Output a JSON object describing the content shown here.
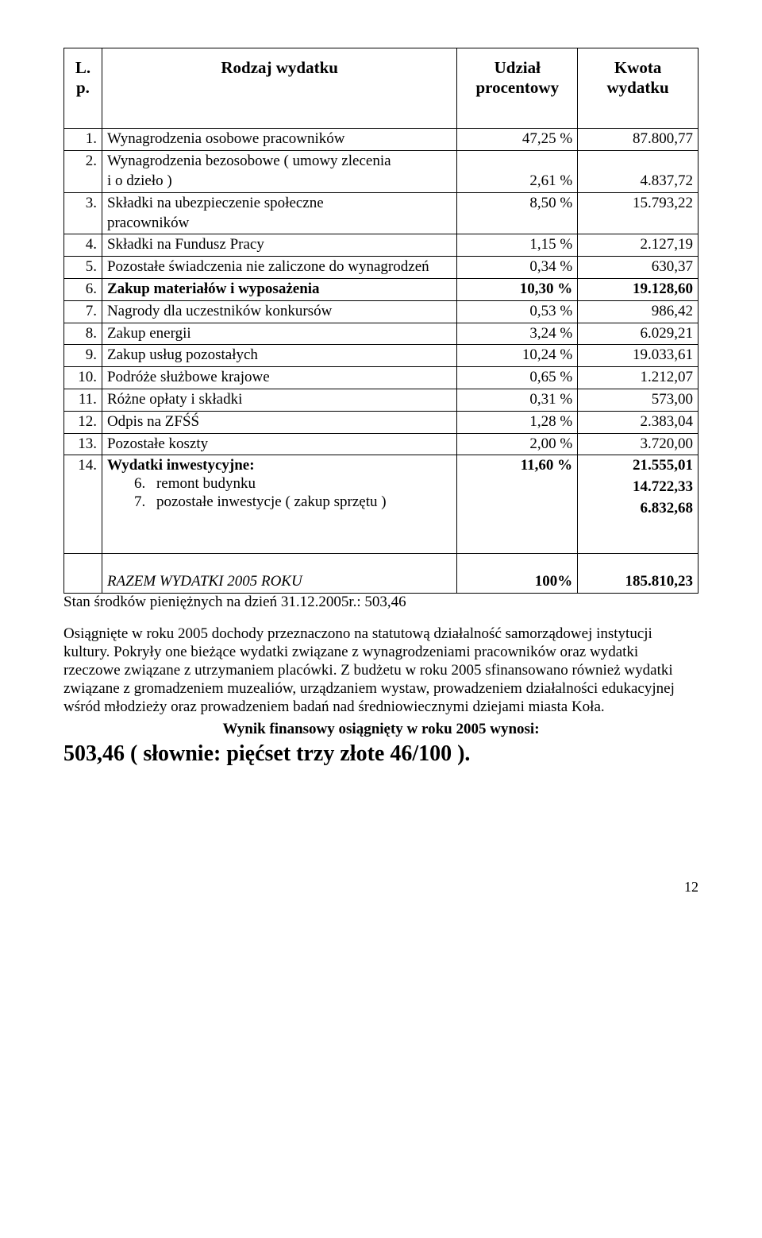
{
  "header": {
    "lp": "L. p.",
    "rodzaj": "Rodzaj wydatku",
    "udzial": "Udział procentowy",
    "kwota": "Kwota wydatku"
  },
  "rows": [
    {
      "lp": "1.",
      "desc": "Wynagrodzenia osobowe pracowników",
      "pct": "47,25 %",
      "amt": "87.800,77",
      "bold": false
    },
    {
      "lp": "2.",
      "desc_lines": [
        "Wynagrodzenia bezosobowe ( umowy zlecenia",
        "i o dzieło )"
      ],
      "pct": "2,61 %",
      "amt": "4.837,72",
      "bold": false,
      "pct_bottom": true
    },
    {
      "lp": "3.",
      "desc_lines": [
        "Składki na ubezpieczenie społeczne",
        "pracowników"
      ],
      "pct": "8,50 %",
      "amt": "15.793,22",
      "bold": false,
      "pct_bottom": false
    },
    {
      "lp": "4.",
      "desc": "Składki na Fundusz Pracy",
      "pct": "1,15 %",
      "amt": "2.127,19",
      "bold": false
    },
    {
      "lp": "5.",
      "desc": "Pozostałe świadczenia nie zaliczone do wynagrodzeń",
      "pct": "0,34 %",
      "amt": "630,37",
      "bold": false
    },
    {
      "lp": "6.",
      "desc": "Zakup materiałów i wyposażenia",
      "pct": "10,30 %",
      "amt": "19.128,60",
      "bold": true
    },
    {
      "lp": "7.",
      "desc": "Nagrody dla uczestników konkursów",
      "pct": "0,53 %",
      "amt": "986,42",
      "bold": false
    },
    {
      "lp": "8.",
      "desc": "Zakup energii",
      "pct": "3,24 %",
      "amt": "6.029,21",
      "bold": false
    },
    {
      "lp": "9.",
      "desc": "Zakup usług pozostałych",
      "pct": "10,24 %",
      "amt": "19.033,61",
      "bold": false
    },
    {
      "lp": "10.",
      "desc": "Podróże służbowe krajowe",
      "pct": "0,65 %",
      "amt": "1.212,07",
      "bold": false
    },
    {
      "lp": "11.",
      "desc": "Różne opłaty i składki",
      "pct": "0,31 %",
      "amt": "573,00",
      "bold": false
    },
    {
      "lp": "12.",
      "desc": "Odpis na ZFŚŚ",
      "pct": "1,28 %",
      "amt": "2.383,04",
      "bold": false
    },
    {
      "lp": "13.",
      "desc": "Pozostałe koszty",
      "pct": "2,00 %",
      "amt": "3.720,00",
      "bold": false
    }
  ],
  "row14": {
    "lp": "14.",
    "desc": "Wydatki inwestycyjne:",
    "pct": "11,60 %",
    "amt": "21.555,01",
    "sub": [
      {
        "n": "6.",
        "text": "remont budynku",
        "val": "14.722,33"
      },
      {
        "n": "7.",
        "text": "pozostałe inwestycje ( zakup sprzętu )",
        "val": "6.832,68"
      }
    ]
  },
  "summary": {
    "label": "RAZEM WYDATKI 2005 ROKU",
    "pct": "100%",
    "amt": "185.810,23"
  },
  "stan": "Stan środków pieniężnych na dzień 31.12.2005r.: 503,46",
  "para": "Osiągnięte w roku 2005 dochody przeznaczono na statutową działalność samorządowej instytucji kultury. Pokryły one bieżące wydatki związane z wynagrodzeniami pracowników oraz wydatki rzeczowe związane z utrzymaniem placówki. Z budżetu w roku 2005 sfinansowano również wydatki związane z gromadzeniem muzealiów, urządzaniem wystaw, prowadzeniem działalności edukacyjnej wśród młodzieży oraz prowadzeniem badań nad średniowiecznymi dziejami miasta Koła.",
  "wynik_label": "Wynik finansowy osiągnięty w roku 2005 wynosi:",
  "wynik_value": "503,46 ( słownie: pięćset trzy złote 46/100 ).",
  "pagenum": "12"
}
